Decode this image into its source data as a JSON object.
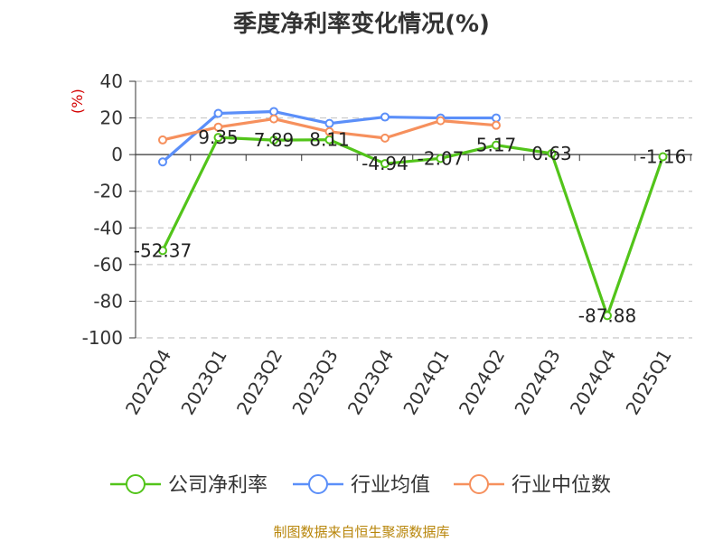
{
  "chart_data": {
    "type": "line",
    "title": "季度净利率变化情况(%)",
    "unit_label": "(%)",
    "categories": [
      "2022Q4",
      "2023Q1",
      "2023Q2",
      "2023Q3",
      "2023Q4",
      "2024Q1",
      "2024Q2",
      "2024Q3",
      "2024Q4",
      "2025Q1"
    ],
    "ylim": [
      -100,
      40
    ],
    "yticks": [
      40,
      20,
      0,
      -20,
      -40,
      -60,
      -80,
      -100
    ],
    "grid": true,
    "legend_position": "bottom",
    "series": [
      {
        "name": "公司净利率",
        "color": "#52c41a",
        "values": [
          -52.37,
          9.35,
          7.89,
          8.11,
          -4.94,
          -2.07,
          5.17,
          0.63,
          -87.88,
          -1.16
        ],
        "labels": [
          "-52.37",
          "9.35",
          "7.89",
          "8.11",
          "-4.94",
          "-2.07",
          "5.17",
          "0.63",
          "-87.88",
          "-1.16"
        ]
      },
      {
        "name": "行业均值",
        "color": "#5b8ff9",
        "values": [
          -4,
          22.5,
          23.5,
          17,
          20.5,
          20,
          20,
          null,
          null,
          null
        ]
      },
      {
        "name": "行业中位数",
        "color": "#f6905d",
        "values": [
          8,
          15,
          19.5,
          12.5,
          9,
          18.5,
          16,
          null,
          null,
          null
        ]
      }
    ]
  },
  "source_note": "制图数据来自恒生聚源数据库"
}
